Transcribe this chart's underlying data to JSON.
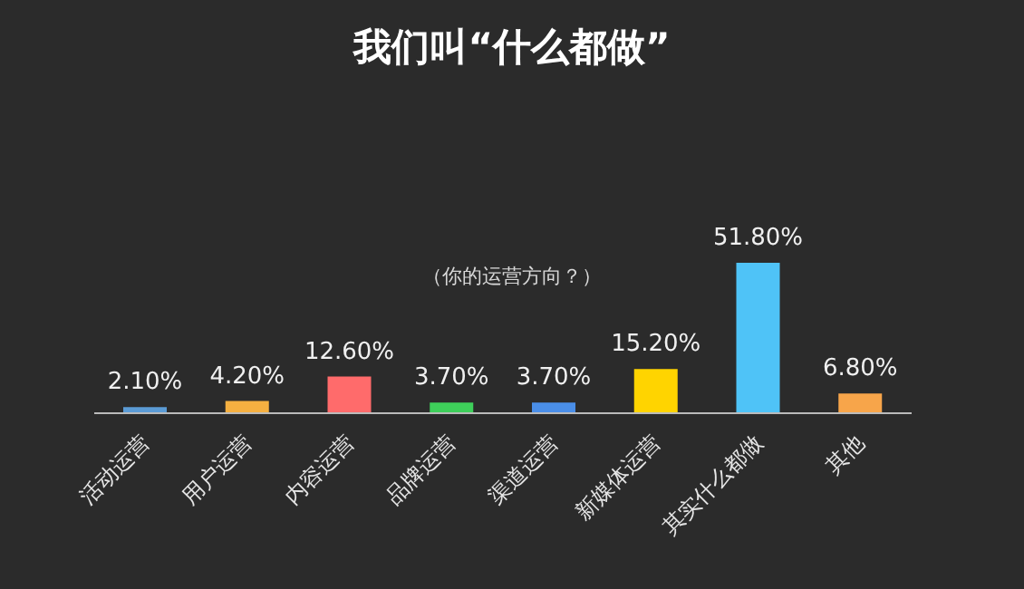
{
  "chart_data": {
    "type": "bar",
    "title": "我们叫“什么都做”",
    "annotations": [
      "（你的运营方向？）"
    ],
    "categories": [
      "活动运营",
      "用户运营",
      "内容运营",
      "品牌运营",
      "渠道运营",
      "新媒体运营",
      "其实什么都做",
      "其他"
    ],
    "values": [
      2.1,
      4.2,
      12.6,
      3.7,
      3.7,
      15.2,
      51.8,
      6.8
    ],
    "colors": [
      "#5b9bd5",
      "#f5b041",
      "#ff6b6b",
      "#3ecf5a",
      "#4a8ee8",
      "#ffd400",
      "#4fc3f7",
      "#f7a54a"
    ],
    "value_labels": [
      "2.10%",
      "4.20%",
      "12.60%",
      "3.70%",
      "3.70%",
      "15.20%",
      "51.80%",
      "6.80%"
    ],
    "legend": false,
    "grid": false
  }
}
